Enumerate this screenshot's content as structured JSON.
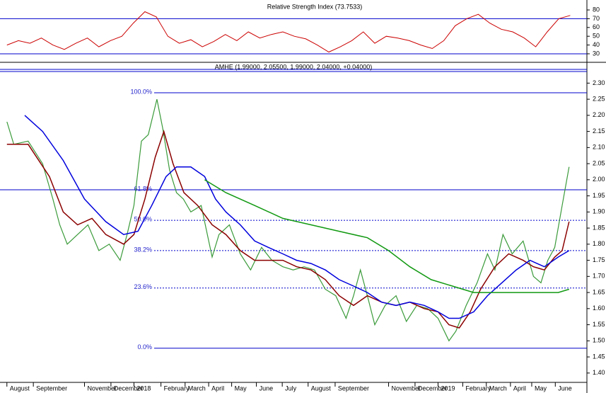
{
  "chart_data": [
    {
      "type": "line",
      "title": "Relative Strength Index (73.7533)",
      "x": [
        0,
        2,
        4,
        6,
        8,
        10,
        12,
        14,
        16,
        18,
        20,
        22,
        24,
        26,
        28,
        30,
        32,
        34,
        36,
        38,
        40,
        42,
        44,
        46,
        48,
        50,
        52,
        54,
        56,
        58,
        60,
        62,
        64,
        66,
        68,
        70,
        72,
        74,
        76,
        78,
        80,
        82,
        84,
        86,
        88,
        90,
        92,
        94,
        96,
        98
      ],
      "values": [
        40,
        45,
        42,
        48,
        40,
        35,
        42,
        48,
        38,
        45,
        50,
        65,
        78,
        72,
        50,
        42,
        46,
        38,
        44,
        52,
        45,
        55,
        48,
        52,
        55,
        50,
        47,
        40,
        32,
        38,
        45,
        55,
        42,
        50,
        48,
        45,
        40,
        36,
        45,
        62,
        70,
        75,
        65,
        58,
        55,
        48,
        38,
        55,
        70,
        73.7533
      ],
      "color": "#cc0000",
      "xlim": [
        -1.2,
        100.9
      ],
      "ylim": [
        22.7,
        87.3
      ],
      "yticks": [
        30,
        40,
        50,
        60,
        70,
        80
      ],
      "levels": [
        70,
        30
      ],
      "level_color": "#0000cc"
    },
    {
      "type": "line",
      "title": "AMHE (1.99000, 2.05500, 1.99000, 2.04000, +0.04000)",
      "xlim": [
        -1.2,
        100.9
      ],
      "ylim": [
        1.371,
        2.336
      ],
      "xticks": [
        {
          "value": 0,
          "label": "August"
        },
        {
          "value": 4.6,
          "label": "September"
        },
        {
          "value": 13.5,
          "label": "November"
        },
        {
          "value": 18.1,
          "label": "December"
        },
        {
          "value": 22.1,
          "label": "2018"
        },
        {
          "value": 26.8,
          "label": "February"
        },
        {
          "value": 31,
          "label": "March"
        },
        {
          "value": 35.1,
          "label": "April"
        },
        {
          "value": 39.1,
          "label": "May"
        },
        {
          "value": 43.4,
          "label": "June"
        },
        {
          "value": 47.9,
          "label": "July"
        },
        {
          "value": 52.4,
          "label": "August"
        },
        {
          "value": 57.1,
          "label": "September"
        },
        {
          "value": 66.4,
          "label": "November"
        },
        {
          "value": 71,
          "label": "December"
        },
        {
          "value": 75,
          "label": "2019"
        },
        {
          "value": 79.3,
          "label": "February"
        },
        {
          "value": 83.4,
          "label": "March"
        },
        {
          "value": 87.6,
          "label": "April"
        },
        {
          "value": 91.3,
          "label": "May"
        },
        {
          "value": 95.4,
          "label": "June"
        }
      ],
      "yticks": [
        {
          "value": 1.4,
          "label": "1.40"
        },
        1.45,
        {
          "value": 1.5,
          "label": "1.50"
        },
        1.55,
        {
          "value": 1.6,
          "label": "1.60"
        },
        1.65,
        {
          "value": 1.7,
          "label": "1.70"
        },
        1.75,
        {
          "value": 1.8,
          "label": "1.80"
        },
        1.85,
        {
          "value": 1.9,
          "label": "1.90"
        },
        1.95,
        {
          "value": 2.0,
          "label": "2.00"
        },
        2.05,
        {
          "value": 2.1,
          "label": "2.10"
        },
        2.15,
        {
          "value": 2.2,
          "label": "2.20"
        },
        2.25,
        {
          "value": 2.3,
          "label": "2.30"
        }
      ],
      "series": [
        {
          "color": "#3a9a3a",
          "x": [
            0,
            1.2,
            3.7,
            6.2,
            8.0,
            9.2,
            10.5,
            12.3,
            14.1,
            16.0,
            17.8,
            19.7,
            20.9,
            22.1,
            23.4,
            24.6,
            26.1,
            27.1,
            28.3,
            29.5,
            30.7,
            32.0,
            33.8,
            35.7,
            36.9,
            38.7,
            40.6,
            42.4,
            44.3,
            46.1,
            48.0,
            49.8,
            51.7,
            53.5,
            55.4,
            57.2,
            59.0,
            60.3,
            61.5,
            62.7,
            64.0,
            65.8,
            67.7,
            69.5,
            71.3,
            73.2,
            75.0,
            76.9,
            78.1,
            79.9,
            81.8,
            83.6,
            84.9,
            86.3,
            87.9,
            89.8,
            91.6,
            92.9,
            94.1,
            95.3,
            96.6,
            97.8
          ],
          "values": [
            2.18,
            2.11,
            2.12,
            2.05,
            1.94,
            1.86,
            1.8,
            1.83,
            1.86,
            1.78,
            1.8,
            1.75,
            1.83,
            1.92,
            2.12,
            2.14,
            2.25,
            2.16,
            2.03,
            1.96,
            1.94,
            1.9,
            1.92,
            1.76,
            1.83,
            1.86,
            1.77,
            1.72,
            1.79,
            1.75,
            1.73,
            1.72,
            1.73,
            1.72,
            1.66,
            1.64,
            1.57,
            1.64,
            1.72,
            1.64,
            1.55,
            1.61,
            1.64,
            1.56,
            1.61,
            1.6,
            1.57,
            1.5,
            1.53,
            1.61,
            1.68,
            1.77,
            1.72,
            1.83,
            1.77,
            1.81,
            1.7,
            1.68,
            1.75,
            1.79,
            1.92,
            2.04
          ]
        },
        {
          "color": "#8b0000",
          "x": [
            0,
            3.7,
            7.4,
            9.8,
            12.3,
            14.8,
            17.2,
            20.3,
            22.1,
            24.0,
            25.8,
            27.3,
            28.9,
            30.8,
            33.2,
            35.7,
            38.1,
            40.6,
            43.1,
            45.5,
            48.0,
            50.4,
            52.9,
            55.4,
            57.8,
            60.3,
            62.7,
            65.2,
            67.7,
            70.1,
            72.6,
            75.0,
            76.9,
            78.7,
            80.6,
            82.4,
            84.9,
            87.3,
            89.8,
            91.6,
            93.5,
            95.3,
            96.6,
            97.8
          ],
          "values": [
            2.11,
            2.11,
            2.01,
            1.9,
            1.86,
            1.88,
            1.83,
            1.8,
            1.83,
            1.94,
            2.07,
            2.15,
            2.05,
            1.96,
            1.92,
            1.86,
            1.83,
            1.78,
            1.75,
            1.75,
            1.75,
            1.73,
            1.72,
            1.69,
            1.64,
            1.61,
            1.64,
            1.62,
            1.61,
            1.62,
            1.6,
            1.59,
            1.55,
            1.54,
            1.59,
            1.66,
            1.73,
            1.77,
            1.75,
            1.73,
            1.72,
            1.76,
            1.78,
            1.87
          ]
        },
        {
          "color": "#0000dd",
          "x": [
            3.1,
            6.2,
            9.8,
            13.5,
            17.2,
            20.3,
            22.8,
            25.2,
            27.7,
            29.5,
            32.0,
            34.4,
            36.3,
            38.1,
            40.6,
            43.1,
            45.5,
            48.0,
            50.4,
            52.9,
            55.4,
            57.8,
            60.3,
            62.7,
            65.2,
            67.7,
            70.1,
            72.6,
            75.0,
            76.9,
            78.7,
            81.2,
            83.6,
            86.1,
            88.6,
            91.0,
            93.5,
            95.9,
            97.8
          ],
          "values": [
            2.2,
            2.15,
            2.06,
            1.94,
            1.87,
            1.83,
            1.84,
            1.92,
            2.01,
            2.04,
            2.04,
            2.01,
            1.94,
            1.9,
            1.86,
            1.81,
            1.79,
            1.77,
            1.75,
            1.74,
            1.72,
            1.69,
            1.67,
            1.65,
            1.62,
            1.61,
            1.62,
            1.61,
            1.59,
            1.57,
            1.57,
            1.59,
            1.64,
            1.68,
            1.72,
            1.75,
            1.73,
            1.76,
            1.78
          ]
        },
        {
          "color": "#119911",
          "x": [
            34.4,
            38.1,
            43.1,
            48.0,
            52.9,
            57.8,
            62.7,
            66.4,
            70.1,
            73.8,
            77.5,
            81.2,
            84.9,
            89.8,
            93.5,
            95.9,
            97.8
          ],
          "values": [
            2.0,
            1.96,
            1.92,
            1.88,
            1.86,
            1.84,
            1.82,
            1.78,
            1.73,
            1.69,
            1.67,
            1.65,
            1.65,
            1.65,
            1.65,
            1.65,
            1.66
          ]
        }
      ],
      "fib": [
        {
          "label": "100.0%",
          "value": 2.27,
          "dashed": false
        },
        {
          "label": "61.8%",
          "value": 1.969,
          "dashed": false,
          "full_width": true
        },
        {
          "label": "50.0%",
          "value": 1.874,
          "dashed": true
        },
        {
          "label": "38.2%",
          "value": 1.78,
          "dashed": true
        },
        {
          "label": "23.6%",
          "value": 1.664,
          "dashed": true
        },
        {
          "label": "0.0%",
          "value": 1.477,
          "dashed": false
        }
      ],
      "level_color": "#0000cc"
    }
  ]
}
